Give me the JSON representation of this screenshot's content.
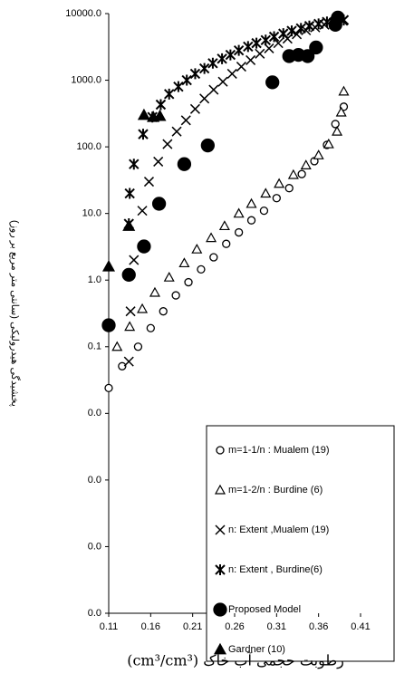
{
  "chart_data": {
    "type": "scatter",
    "ylabel": "پخشیدگی هیدرولیکی (سانتی متر مربع بر روز)",
    "xlabel": "رطوبت حجمی آب خاک (cm³/cm³)",
    "xlim": [
      0.11,
      0.41
    ],
    "xticks": [
      0.11,
      0.16,
      0.21,
      0.26,
      0.31,
      0.36,
      0.41
    ],
    "ylim": [
      1e-05,
      10000
    ],
    "log_y": true,
    "yticks": [
      {
        "value": 1e-05,
        "label": "0.0"
      },
      {
        "value": 0.0001,
        "label": "0.0"
      },
      {
        "value": 0.001,
        "label": "0.0"
      },
      {
        "value": 0.01,
        "label": "0.0"
      },
      {
        "value": 0.1,
        "label": "0.1"
      },
      {
        "value": 1,
        "label": "1.0"
      },
      {
        "value": 10,
        "label": "10.0"
      },
      {
        "value": 100,
        "label": "100.0"
      },
      {
        "value": 1000,
        "label": "1000.0"
      },
      {
        "value": 10000,
        "label": "10000.0"
      }
    ],
    "series": [
      {
        "name": "m=1-1/n : Mualem (19)",
        "marker": "open-circle",
        "color": "#000000",
        "x": [
          0.11,
          0.126,
          0.145,
          0.16,
          0.175,
          0.19,
          0.205,
          0.22,
          0.235,
          0.25,
          0.265,
          0.28,
          0.295,
          0.31,
          0.325,
          0.34,
          0.355,
          0.37,
          0.38,
          0.39
        ],
        "values": [
          0.024,
          0.051,
          0.1,
          0.19,
          0.34,
          0.59,
          0.93,
          1.45,
          2.2,
          3.5,
          5.2,
          7.9,
          11,
          17,
          24,
          39,
          61,
          107,
          220,
          400
        ]
      },
      {
        "name": "m=1-2/n : Burdine (6)",
        "marker": "open-triangle",
        "color": "#000000",
        "x": [
          0.12,
          0.135,
          0.15,
          0.165,
          0.182,
          0.2,
          0.215,
          0.232,
          0.248,
          0.265,
          0.28,
          0.297,
          0.313,
          0.33,
          0.345,
          0.36,
          0.372,
          0.382,
          0.387,
          0.39
        ],
        "values": [
          0.1,
          0.2,
          0.37,
          0.65,
          1.1,
          1.8,
          2.9,
          4.3,
          6.5,
          10,
          14,
          20,
          28,
          38,
          53,
          75,
          110,
          170,
          330,
          680
        ]
      },
      {
        "name": "n: Extent ,Mualem (19)",
        "marker": "cross",
        "color": "#000000",
        "x": [
          0.134,
          0.136,
          0.14,
          0.15,
          0.158,
          0.169,
          0.18,
          0.191,
          0.202,
          0.213,
          0.224,
          0.235,
          0.246,
          0.257,
          0.268,
          0.279,
          0.29,
          0.301,
          0.312,
          0.323,
          0.334,
          0.345,
          0.356,
          0.367,
          0.378,
          0.389
        ],
        "values": [
          0.06,
          0.34,
          2,
          11,
          30,
          60,
          110,
          170,
          250,
          370,
          530,
          720,
          950,
          1250,
          1600,
          2000,
          2500,
          3000,
          3600,
          4200,
          4900,
          5600,
          6200,
          6800,
          7300,
          7800
        ]
      },
      {
        "name": "n: Extent , Burdine(6)",
        "marker": "asterisk",
        "color": "#000000",
        "x": [
          0.134,
          0.135,
          0.14,
          0.151,
          0.162,
          0.172,
          0.182,
          0.193,
          0.203,
          0.213,
          0.224,
          0.234,
          0.245,
          0.255,
          0.265,
          0.276,
          0.286,
          0.297,
          0.307,
          0.318,
          0.328,
          0.339,
          0.349,
          0.36,
          0.37,
          0.39
        ],
        "values": [
          7,
          20,
          55,
          155,
          280,
          430,
          620,
          800,
          1000,
          1250,
          1500,
          1800,
          2100,
          2400,
          2800,
          3200,
          3600,
          4000,
          4500,
          5000,
          5500,
          6000,
          6500,
          7000,
          7500,
          8000
        ]
      },
      {
        "name": "Proposed Model",
        "marker": "filled-circle",
        "color": "#000000",
        "x": [
          0.11,
          0.134,
          0.152,
          0.17,
          0.2,
          0.228,
          0.305,
          0.325,
          0.336,
          0.347,
          0.357,
          0.38,
          0.383
        ],
        "values": [
          0.21,
          1.2,
          3.2,
          14,
          55,
          105,
          930,
          2300,
          2400,
          2300,
          3100,
          6800,
          8700
        ]
      },
      {
        "name": "Gardner (10)",
        "marker": "filled-triangle",
        "color": "#000000",
        "x": [
          0.11,
          0.134,
          0.152,
          0.163,
          0.171
        ],
        "values": [
          1.6,
          6.5,
          300,
          280,
          290
        ]
      }
    ]
  }
}
